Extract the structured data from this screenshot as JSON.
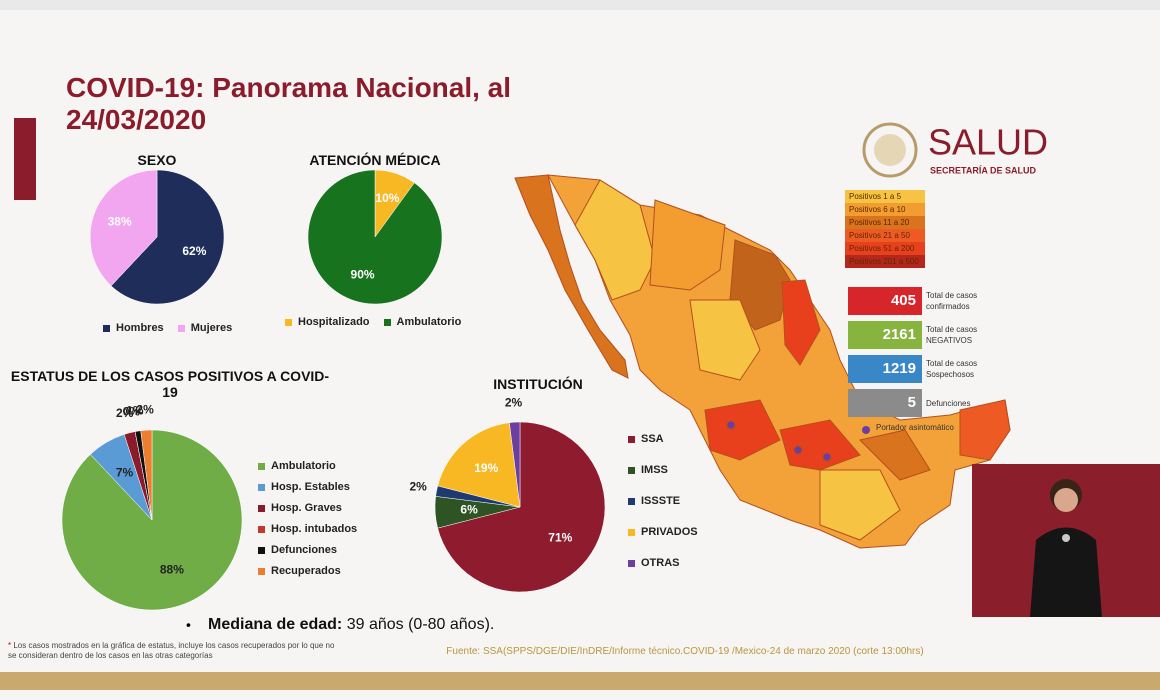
{
  "title": "COVID-19: Panorama Nacional, al 24/03/2020",
  "logo": {
    "name": "SALUD",
    "subtitle": "SECRETARÍA DE SALUD"
  },
  "chart_data": [
    {
      "type": "pie",
      "title": "SEXO",
      "categories": [
        "Hombres",
        "Mujeres"
      ],
      "values": [
        62,
        38
      ],
      "value_labels": [
        "62%",
        "38%"
      ],
      "colors": [
        "#1f2d5a",
        "#f2a6ef"
      ],
      "legend": "bottom"
    },
    {
      "type": "pie",
      "title": "ATENCIÓN MÉDICA",
      "categories": [
        "Hospitalizado",
        "Ambulatorio"
      ],
      "values": [
        10,
        90
      ],
      "value_labels": [
        "10%",
        "90%"
      ],
      "colors": [
        "#f7b824",
        "#18731e"
      ],
      "legend": "bottom"
    },
    {
      "type": "pie",
      "title": "ESTATUS DE LOS CASOS POSITIVOS A COVID-19",
      "categories": [
        "Ambulatorio",
        "Hosp. Estables",
        "Hosp. Graves",
        "Hosp. intubados",
        "Defunciones",
        "Recuperados"
      ],
      "values": [
        88,
        7,
        2,
        0,
        1,
        2
      ],
      "value_labels": [
        "88%",
        "7%",
        "2%",
        "0%",
        "1%",
        "2%"
      ],
      "colors": [
        "#70ad47",
        "#5b9bd5",
        "#8b1a2b",
        "#c0392b",
        "#111111",
        "#ed7d31"
      ],
      "legend": "right"
    },
    {
      "type": "pie",
      "title": "INSTITUCIÓN",
      "categories": [
        "SSA",
        "IMSS",
        "ISSSTE",
        "PRIVADOS",
        "OTRAS"
      ],
      "values": [
        71,
        6,
        2,
        19,
        2
      ],
      "value_labels": [
        "71%",
        "6%",
        "2%",
        "19%",
        "2%"
      ],
      "colors": [
        "#8e1b2e",
        "#2e5424",
        "#1f3a70",
        "#f7b824",
        "#6b3fa0"
      ],
      "legend": "right"
    }
  ],
  "map_legend": [
    {
      "label": "Positivos 1 a 5",
      "color": "#f6c342"
    },
    {
      "label": "Positivos 6 a 10",
      "color": "#f39c2f"
    },
    {
      "label": "Positivos 11 a 20",
      "color": "#d9731e"
    },
    {
      "label": "Positivos 21 a 50",
      "color": "#ee5a24"
    },
    {
      "label": "Positivos 51 a 200",
      "color": "#e8401c"
    },
    {
      "label": "Positivos 201 a 500",
      "color": "#b5261b"
    }
  ],
  "stats": [
    {
      "value": 405,
      "label": "Total de casos confirmados",
      "color": "#d7262b"
    },
    {
      "value": 2161,
      "label": "Total de casos NEGATIVOS",
      "color": "#86b43f"
    },
    {
      "value": 1219,
      "label": "Total de casos Sospechosos",
      "color": "#3a87c8"
    },
    {
      "value": 5,
      "label": "Defunciones",
      "color": "#8b8b8b"
    }
  ],
  "asymptomatic": "Portador asintomático",
  "median": {
    "label": "Mediana de edad:",
    "value": "39 años (0-80 años)."
  },
  "footnote": "Los casos mostrados en la gráfica de estatus, incluye los casos recuperados por lo que no se consideran dentro de los casos en las otras categorías",
  "source": "Fuente: SSA(SPPS/DGE/DIE/InDRE/Informe técnico.COVID-19 /Mexico-24 de marzo 2020 (corte 13:00hrs)"
}
